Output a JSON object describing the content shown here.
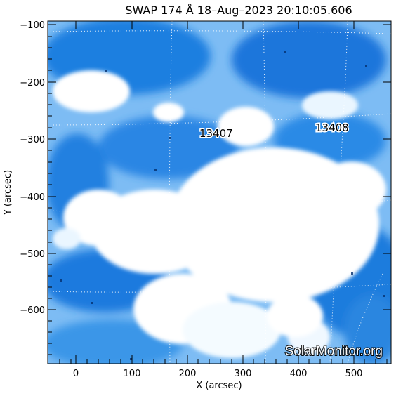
{
  "title": "SWAP 174 Å 18–Aug–2023 20:10:05.606",
  "x_axis": {
    "label": "X (arcsec)",
    "ticks": [
      "0",
      "100",
      "200",
      "300",
      "400",
      "500"
    ]
  },
  "y_axis": {
    "label": "Y (arcsec)",
    "ticks": [
      "−100",
      "−200",
      "−300",
      "−400",
      "−500",
      "−600"
    ]
  },
  "regions": [
    {
      "id": "13407"
    },
    {
      "id": "13408"
    }
  ],
  "watermark": "SolarMonitor.org",
  "colors": {
    "background": "#ffffff",
    "image_white": "#f4fbff",
    "image_light": "#8fc6f7",
    "image_mid": "#3b98ea",
    "image_dark": "#0b5fc2",
    "image_deep": "#04306e"
  }
}
